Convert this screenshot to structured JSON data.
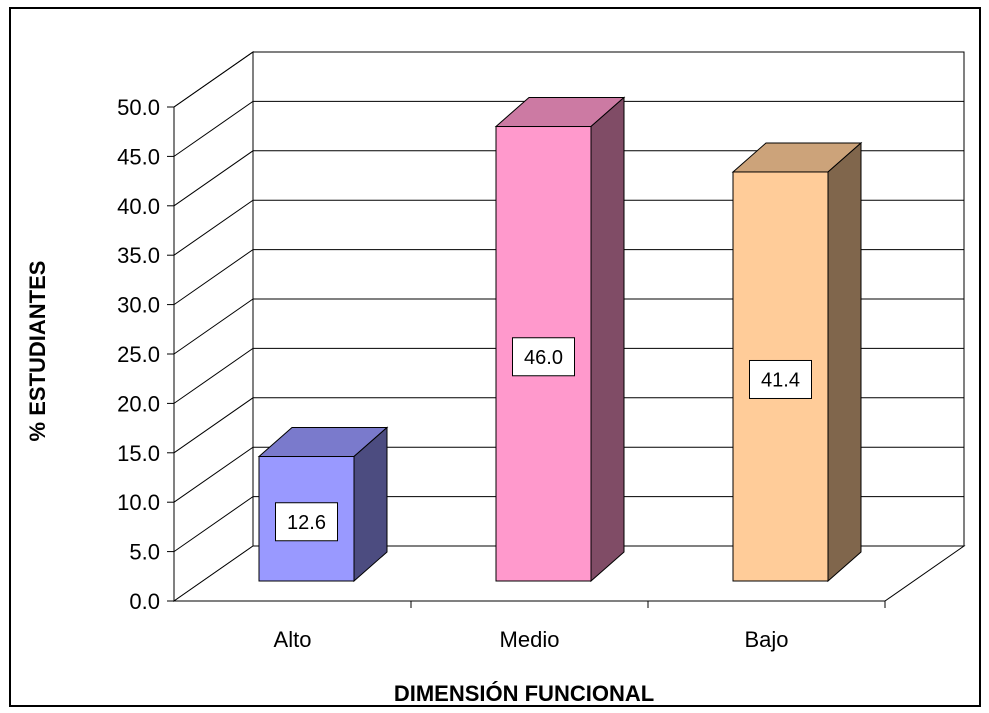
{
  "chart_data": {
    "type": "bar",
    "title": "",
    "xlabel": "DIMENSIÓN FUNCIONAL",
    "ylabel": "% ESTUDIANTES",
    "categories": [
      "Alto",
      "Medio",
      "Bajo"
    ],
    "values": [
      12.6,
      46.0,
      41.4
    ],
    "data_labels": [
      "12.6",
      "46.0",
      "41.4"
    ],
    "ylim": [
      0,
      50
    ],
    "yticks": [
      "0.0",
      "5.0",
      "10.0",
      "15.0",
      "20.0",
      "25.0",
      "30.0",
      "35.0",
      "40.0",
      "45.0",
      "50.0"
    ],
    "grid": true,
    "legend": "none",
    "style": "3d-column",
    "colors": {
      "bars": [
        "#9999ff",
        "#ff99cc",
        "#ffcc99"
      ],
      "bar_tops": [
        "#7a7acc",
        "#cc7aa3",
        "#cca37a"
      ],
      "bar_sides": [
        "#4c4c80",
        "#804c66",
        "#80664c"
      ]
    }
  }
}
